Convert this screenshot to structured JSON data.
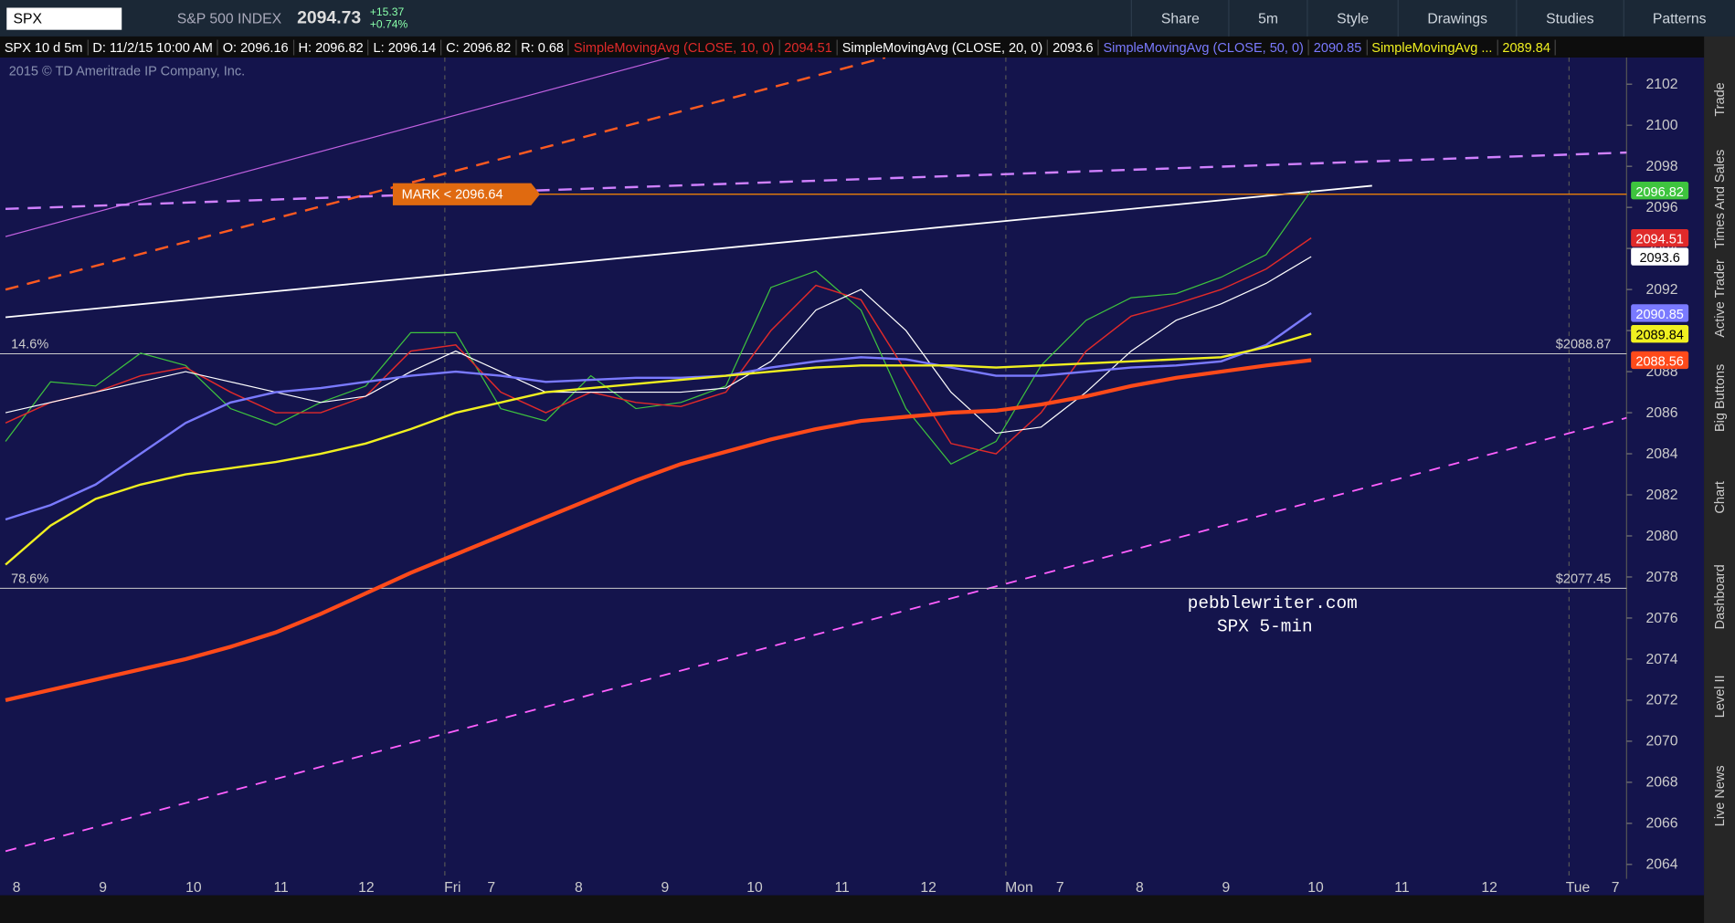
{
  "toolbar": {
    "symbol": "SPX",
    "description": "S&P 500 INDEX",
    "last": "2094.73",
    "change": "+15.37",
    "change_pct": "+0.74%",
    "buttons": [
      "Share",
      "5m",
      "Style",
      "Drawings",
      "Studies",
      "Patterns"
    ]
  },
  "info_bar": {
    "chart": "SPX 10 d 5m",
    "date": "D: 11/2/15 10:00 AM",
    "open": "O: 2096.16",
    "high": "H: 2096.82",
    "low": "L: 2096.14",
    "close": "C: 2096.82",
    "range": "R: 0.68"
  },
  "copyright": "2015 © TD Ameritrade IP Company, Inc.",
  "sidebar": [
    "Trade",
    "Times And Sales",
    "Active Trader",
    "Big Buttons",
    "Chart",
    "Dashboard",
    "Level II",
    "Live News"
  ],
  "chart_data": {
    "type": "line",
    "title": "SPX 5-min",
    "subtitle": "pebblewriter.com",
    "time_labels": [
      "8",
      "9",
      "10",
      "11",
      "12",
      "Fri",
      "7",
      "8",
      "9",
      "10",
      "11",
      "12",
      "Mon",
      "7",
      "8",
      "9",
      "10",
      "11",
      "12",
      "Tue",
      "7"
    ],
    "ylim": [
      2063.3,
      2103.3
    ],
    "yticks": [
      2064,
      2066,
      2068,
      2070,
      2072,
      2074,
      2076,
      2078,
      2080,
      2082,
      2084,
      2086,
      2088,
      2090,
      2092,
      2094,
      2096,
      2098,
      2100,
      2102
    ],
    "series": [
      {
        "color": "#3ec43e",
        "values": [
          2084.6,
          2087.5,
          2087.3,
          2088.9,
          2088.3,
          2086.2,
          2085.4,
          2086.5,
          2087.3,
          2089.9,
          2089.9,
          2086.2,
          2085.6,
          2087.8,
          2086.2,
          2086.5,
          2087.3,
          2092.1,
          2092.9,
          2091.0,
          2086.2,
          2083.5,
          2084.6,
          2088.3,
          2090.5,
          2091.6,
          2091.8,
          2092.6,
          2093.7,
          2096.82
        ]
      },
      {
        "name": "SimpleMovingAvg (CLOSE, 10, 0)",
        "color": "#e02a2a",
        "values": [
          2085.5,
          2086.5,
          2087,
          2087.8,
          2088.2,
          2087,
          2086,
          2086,
          2086.8,
          2089,
          2089.3,
          2087,
          2086,
          2087,
          2086.5,
          2086.3,
          2087,
          2090,
          2092.2,
          2091.5,
          2088,
          2084.5,
          2084,
          2086,
          2089,
          2090.7,
          2091.3,
          2092,
          2093,
          2094.51
        ]
      },
      {
        "name": "SimpleMovingAvg (CLOSE, 20, 0)",
        "color": "#ffffff",
        "values": [
          2086,
          2086.5,
          2087,
          2087.5,
          2088,
          2087.5,
          2087,
          2086.5,
          2086.8,
          2088,
          2089,
          2088,
          2087,
          2087,
          2087,
          2087,
          2087.2,
          2088.5,
          2091,
          2092,
          2090,
          2087,
          2085,
          2085.3,
          2087,
          2089,
          2090.5,
          2091.3,
          2092.3,
          2093.6
        ]
      },
      {
        "name": "SimpleMovingAvg (CLOSE, 50, 0)",
        "color": "#7a7aff",
        "values": [
          2080.8,
          2081.5,
          2082.5,
          2084,
          2085.5,
          2086.5,
          2087,
          2087.2,
          2087.5,
          2087.8,
          2088,
          2087.8,
          2087.5,
          2087.6,
          2087.7,
          2087.7,
          2087.8,
          2088.2,
          2088.5,
          2088.7,
          2088.6,
          2088.2,
          2087.8,
          2087.8,
          2088,
          2088.2,
          2088.3,
          2088.5,
          2089.3,
          2090.85
        ]
      },
      {
        "name": "SimpleMovingAvg ...",
        "color": "#f0f020",
        "values": [
          2078.6,
          2080.5,
          2081.8,
          2082.5,
          2083,
          2083.3,
          2083.6,
          2084,
          2084.5,
          2085.2,
          2086,
          2086.5,
          2087,
          2087.2,
          2087.4,
          2087.6,
          2087.8,
          2088,
          2088.2,
          2088.3,
          2088.3,
          2088.3,
          2088.2,
          2088.3,
          2088.4,
          2088.5,
          2088.6,
          2088.7,
          2089.2,
          2089.84
        ]
      },
      {
        "color": "#ff4a1a",
        "values": [
          2072,
          2072.5,
          2073,
          2073.5,
          2074,
          2074.6,
          2075.3,
          2076.2,
          2077.2,
          2078.2,
          2079.1,
          2080,
          2080.9,
          2081.8,
          2082.7,
          2083.5,
          2084.1,
          2084.7,
          2085.2,
          2085.6,
          2085.8,
          2086,
          2086.1,
          2086.4,
          2086.8,
          2087.3,
          2087.7,
          2088,
          2088.3,
          2088.56
        ]
      }
    ],
    "hlines": [
      {
        "value": 2088.87,
        "label": "$2088.87",
        "level": "14.6%"
      },
      {
        "value": 2077.45,
        "label": "$2077.45",
        "level": "78.6%"
      }
    ],
    "mark": {
      "value": 2096.64,
      "label": "MARK < 2096.64"
    }
  }
}
